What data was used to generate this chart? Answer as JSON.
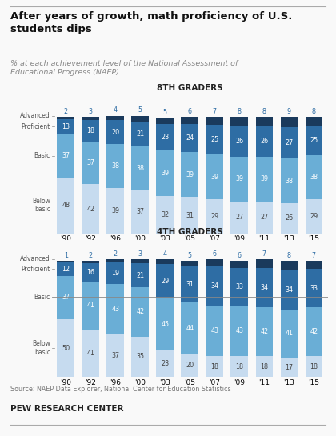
{
  "title": "After years of growth, math proficiency of U.S.\nstudents dips",
  "subtitle": "% at each achievement level of the National Assessment of\nEducational Progress (NAEP)",
  "source": "Source: NAEP Data Explorer, National Center for Education Statistics",
  "branding": "PEW RESEARCH CENTER",
  "years": [
    "'90",
    "'92",
    "'96",
    "'00",
    "'03",
    "'05",
    "'07",
    "'09",
    "'11",
    "'13",
    "'15"
  ],
  "grade8": {
    "title": "8TH GRADERS",
    "advanced": [
      2,
      3,
      4,
      5,
      5,
      6,
      7,
      8,
      8,
      9,
      8
    ],
    "proficient": [
      13,
      18,
      20,
      21,
      23,
      24,
      25,
      26,
      26,
      27,
      25
    ],
    "basic": [
      37,
      37,
      38,
      38,
      39,
      39,
      39,
      39,
      39,
      38,
      38
    ],
    "below_basic": [
      48,
      42,
      39,
      37,
      32,
      31,
      29,
      27,
      27,
      26,
      29
    ]
  },
  "grade4": {
    "title": "4TH GRADERS",
    "advanced": [
      1,
      2,
      2,
      3,
      4,
      5,
      6,
      6,
      7,
      8,
      7
    ],
    "proficient": [
      12,
      16,
      19,
      21,
      29,
      31,
      34,
      33,
      34,
      34,
      33
    ],
    "basic": [
      37,
      41,
      43,
      42,
      45,
      44,
      43,
      43,
      42,
      41,
      42
    ],
    "below_basic": [
      50,
      41,
      37,
      35,
      23,
      20,
      18,
      18,
      18,
      17,
      18
    ]
  },
  "colors": {
    "advanced": "#1a3a5c",
    "proficient": "#2e6da4",
    "basic": "#6aaed6",
    "below_basic": "#c6dbef"
  },
  "bar_width": 0.7,
  "background_color": "#f9f9f9"
}
